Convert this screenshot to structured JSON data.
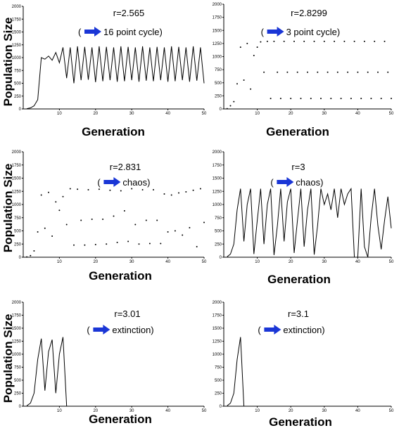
{
  "ylabel": "Population Size",
  "xlabel": "Generation",
  "chart_data": [
    {
      "type": "line",
      "annotation_line1": "r=2.565",
      "annotation_line2_open": "(",
      "annotation_line2_text": "16 point cycle)",
      "xlim": [
        0,
        50
      ],
      "ylim": [
        0,
        2000
      ],
      "x_ticks": [
        10,
        20,
        30,
        40,
        50
      ],
      "y_ticks": [
        0,
        250,
        500,
        750,
        1000,
        1250,
        1500,
        1750,
        2000
      ],
      "x": [
        1,
        2,
        3,
        4,
        5,
        6,
        7,
        8,
        9,
        10,
        11,
        12,
        13,
        14,
        15,
        16,
        17,
        18,
        19,
        20,
        21,
        22,
        23,
        24,
        25,
        26,
        27,
        28,
        29,
        30,
        31,
        32,
        33,
        34,
        35,
        36,
        37,
        38,
        39,
        40,
        41,
        42,
        43,
        44,
        45,
        46,
        47,
        48,
        49,
        50
      ],
      "y": [
        5,
        20,
        60,
        180,
        1000,
        970,
        1030,
        950,
        1100,
        900,
        1200,
        600,
        1200,
        500,
        1220,
        560,
        1210,
        570,
        1200,
        520,
        1220,
        540,
        1210,
        560,
        1200,
        530,
        1220,
        540,
        1210,
        560,
        1200,
        530,
        1220,
        550,
        1200,
        540,
        1210,
        560,
        1200,
        530,
        1220,
        540,
        1210,
        560,
        1200,
        530,
        1220,
        550,
        1200,
        500
      ]
    },
    {
      "type": "scatter",
      "annotation_line1": "r=2.8299",
      "annotation_line2_open": "(",
      "annotation_line2_text": "3 point cycle)",
      "xlim": [
        0,
        50
      ],
      "ylim": [
        0,
        2000
      ],
      "x_ticks": [
        10,
        20,
        30,
        40,
        50
      ],
      "y_ticks": [
        0,
        250,
        500,
        750,
        1000,
        1250,
        1500,
        1750,
        2000
      ],
      "x": [
        1,
        2,
        3,
        4,
        5,
        6,
        7,
        8,
        9,
        10,
        11,
        12,
        13,
        14,
        15,
        16,
        17,
        18,
        19,
        20,
        21,
        22,
        23,
        24,
        25,
        26,
        27,
        28,
        29,
        30,
        31,
        32,
        33,
        34,
        35,
        36,
        37,
        38,
        39,
        40,
        41,
        42,
        43,
        44,
        45,
        46,
        47,
        48,
        49,
        50
      ],
      "y": [
        5,
        60,
        140,
        480,
        1180,
        550,
        1250,
        380,
        1020,
        1180,
        1280,
        700,
        1290,
        200,
        1290,
        700,
        200,
        1290,
        700,
        200,
        1290,
        700,
        200,
        1290,
        700,
        200,
        1290,
        700,
        200,
        1290,
        700,
        200,
        1290,
        700,
        200,
        1290,
        700,
        200,
        1290,
        700,
        200,
        1290,
        700,
        200,
        1290,
        700,
        200,
        1290,
        700,
        200
      ]
    },
    {
      "type": "scatter",
      "annotation_line1": "r=2.831",
      "annotation_line2_open": "(",
      "annotation_line2_text": "chaos)",
      "xlim": [
        0,
        50
      ],
      "ylim": [
        0,
        2000
      ],
      "x_ticks": [
        10,
        20,
        30,
        40,
        50
      ],
      "y_ticks": [
        0,
        250,
        500,
        750,
        1000,
        1250,
        1500,
        1750,
        2000
      ],
      "x": [
        1,
        2,
        3,
        4,
        5,
        6,
        7,
        8,
        9,
        10,
        11,
        12,
        13,
        14,
        15,
        16,
        17,
        18,
        19,
        20,
        21,
        22,
        23,
        24,
        25,
        26,
        27,
        28,
        29,
        30,
        31,
        32,
        33,
        34,
        35,
        36,
        37,
        38,
        39,
        40,
        41,
        42,
        43,
        44,
        45,
        46,
        47,
        48,
        49,
        50
      ],
      "y": [
        5,
        30,
        120,
        480,
        1180,
        550,
        1230,
        400,
        1050,
        890,
        1150,
        620,
        1300,
        230,
        1290,
        700,
        230,
        1280,
        720,
        240,
        1290,
        720,
        250,
        1270,
        780,
        280,
        1260,
        880,
        300,
        1300,
        620,
        250,
        1280,
        700,
        260,
        1280,
        700,
        260,
        1200,
        480,
        1180,
        500,
        1220,
        420,
        1240,
        560,
        1270,
        200,
        1300,
        660
      ]
    },
    {
      "type": "line",
      "annotation_line1": "r=3",
      "annotation_line2_open": "(",
      "annotation_line2_text": "chaos)",
      "xlim": [
        0,
        50
      ],
      "ylim": [
        0,
        2000
      ],
      "x_ticks": [
        10,
        20,
        30,
        40,
        50
      ],
      "y_ticks": [
        0,
        250,
        500,
        750,
        1000,
        1250,
        1500,
        1750,
        2000
      ],
      "x": [
        1,
        2,
        3,
        4,
        5,
        6,
        7,
        8,
        9,
        10,
        11,
        12,
        13,
        14,
        15,
        16,
        17,
        18,
        19,
        20,
        21,
        22,
        23,
        24,
        25,
        26,
        27,
        28,
        29,
        30,
        31,
        32,
        33,
        34,
        35,
        36,
        37,
        38,
        39,
        40,
        41,
        42,
        43,
        44,
        45,
        46,
        47,
        48,
        49,
        50
      ],
      "y": [
        10,
        60,
        250,
        900,
        1300,
        300,
        1000,
        1300,
        60,
        700,
        1300,
        250,
        1000,
        1300,
        40,
        600,
        1300,
        300,
        1050,
        1300,
        80,
        700,
        1300,
        200,
        900,
        1300,
        50,
        600,
        1300,
        1000,
        1200,
        900,
        1300,
        750,
        1300,
        1000,
        1200,
        1300,
        0,
        0,
        1300,
        200,
        0,
        750,
        1300,
        600,
        150,
        700,
        1150,
        550
      ]
    },
    {
      "type": "line",
      "annotation_line1": "r=3.01",
      "annotation_line2_open": "(",
      "annotation_line2_text": "extinction)",
      "xlim": [
        0,
        50
      ],
      "ylim": [
        0,
        2000
      ],
      "x_ticks": [
        10,
        20,
        30,
        40,
        50
      ],
      "y_ticks": [
        0,
        250,
        500,
        750,
        1000,
        1250,
        1500,
        1750,
        2000
      ],
      "x": [
        1,
        2,
        3,
        4,
        5,
        6,
        7,
        8,
        9,
        10,
        11,
        12,
        13,
        14,
        15,
        16,
        17,
        18,
        19,
        20,
        21,
        22,
        23,
        24,
        25,
        26,
        27,
        28,
        29,
        30,
        31,
        32,
        33,
        34,
        35,
        36,
        37,
        38,
        39,
        40,
        41,
        42,
        43,
        44,
        45,
        46,
        47,
        48,
        49,
        50
      ],
      "y": [
        10,
        60,
        250,
        900,
        1300,
        300,
        1050,
        1280,
        250,
        1000,
        1330,
        0,
        0,
        0,
        0,
        0,
        0,
        0,
        0,
        0,
        0,
        0,
        0,
        0,
        0,
        0,
        0,
        0,
        0,
        0,
        0,
        0,
        0,
        0,
        0,
        0,
        0,
        0,
        0,
        0,
        0,
        0,
        0,
        0,
        0,
        0,
        0,
        0,
        0,
        0
      ]
    },
    {
      "type": "line",
      "annotation_line1": "r=3.1",
      "annotation_line2_open": "(",
      "annotation_line2_text": "extinction)",
      "xlim": [
        0,
        50
      ],
      "ylim": [
        0,
        2000
      ],
      "x_ticks": [
        10,
        20,
        30,
        40,
        50
      ],
      "y_ticks": [
        0,
        250,
        500,
        750,
        1000,
        1250,
        1500,
        1750,
        2000
      ],
      "x": [
        1,
        2,
        3,
        4,
        5,
        6,
        7,
        8,
        9,
        10,
        11,
        12,
        13,
        14,
        15,
        16,
        17,
        18,
        19,
        20,
        21,
        22,
        23,
        24,
        25,
        26,
        27,
        28,
        29,
        30,
        31,
        32,
        33,
        34,
        35,
        36,
        37,
        38,
        39,
        40,
        41,
        42,
        43,
        44,
        45,
        46,
        47,
        48,
        49,
        50
      ],
      "y": [
        10,
        60,
        250,
        900,
        1330,
        0,
        0,
        0,
        0,
        0,
        0,
        0,
        0,
        0,
        0,
        0,
        0,
        0,
        0,
        0,
        0,
        0,
        0,
        0,
        0,
        0,
        0,
        0,
        0,
        0,
        0,
        0,
        0,
        0,
        0,
        0,
        0,
        0,
        0,
        0,
        0,
        0,
        0,
        0,
        0,
        0,
        0,
        0,
        0,
        0
      ]
    }
  ]
}
